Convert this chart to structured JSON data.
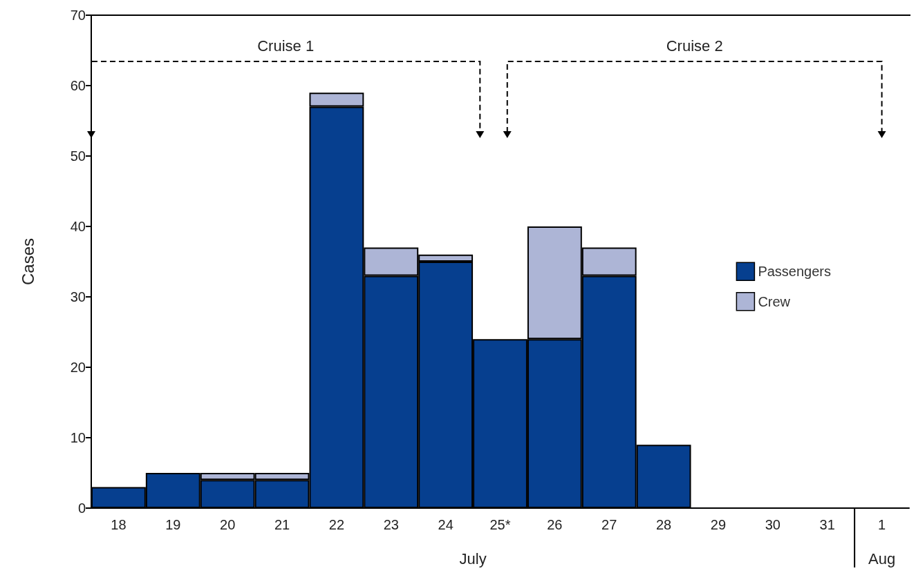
{
  "chart_data": {
    "type": "bar",
    "stacked": true,
    "ylabel": "Cases",
    "xlabel": "July",
    "categories": [
      "18",
      "19",
      "20",
      "21",
      "22",
      "23",
      "24",
      "25*",
      "26",
      "27",
      "28",
      "29",
      "30",
      "31",
      "1"
    ],
    "series": [
      {
        "name": "Passengers",
        "color": "#063f8f",
        "values": [
          3,
          5,
          4,
          4,
          57,
          33,
          35,
          24,
          24,
          33,
          9,
          null,
          null,
          null,
          null
        ]
      },
      {
        "name": "Crew",
        "color": "#adb5d6",
        "values": [
          null,
          null,
          1,
          1,
          2,
          4,
          1,
          null,
          16,
          4,
          null,
          null,
          null,
          null,
          null
        ]
      }
    ],
    "ylim": [
      0,
      70
    ],
    "yticks": [
      0,
      10,
      20,
      30,
      40,
      50,
      60,
      70
    ],
    "grid": false,
    "legend": "right",
    "annotations": [
      "Cruise 1",
      "Cruise 2",
      "Aug"
    ]
  }
}
